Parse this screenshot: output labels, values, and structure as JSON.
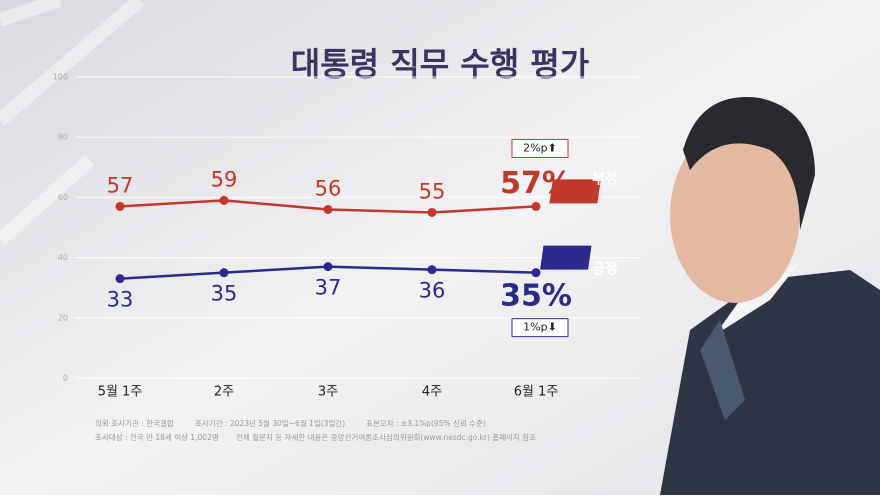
{
  "chart_data": {
    "type": "line",
    "title": "대통령 직무 수행 평가",
    "categories": [
      "5월 1주",
      "2주",
      "3주",
      "4주",
      "6월 1주"
    ],
    "series": [
      {
        "name": "부정",
        "color": "#c0392b",
        "values": [
          57,
          59,
          56,
          55,
          57
        ],
        "value_labels": [
          "57",
          "59",
          "56",
          "55",
          "57%"
        ],
        "change": "2%p⬆"
      },
      {
        "name": "긍정",
        "color": "#2b2a8c",
        "values": [
          33,
          35,
          37,
          36,
          35
        ],
        "value_labels": [
          "33",
          "35",
          "37",
          "36",
          "35%"
        ],
        "change": "1%p⬇"
      }
    ],
    "ylim": [
      0,
      100
    ],
    "yticks": [
      0,
      20,
      40,
      60,
      80,
      100
    ],
    "grid": true,
    "notes": [
      "의뢰·조사기관 : 한국갤럽",
      "조사기간 : 2023년 5월 30일~6월 1일(3일간)",
      "표본오차 : ±3.1%p(95% 신뢰 수준)",
      "조사대상 : 전국 만 18세 이상 1,002명",
      "전체 질문지 등 자세한 내용은 중앙선거여론조사심의위원회(www.nesdc.go.kr) 홈페이지 참조"
    ]
  }
}
